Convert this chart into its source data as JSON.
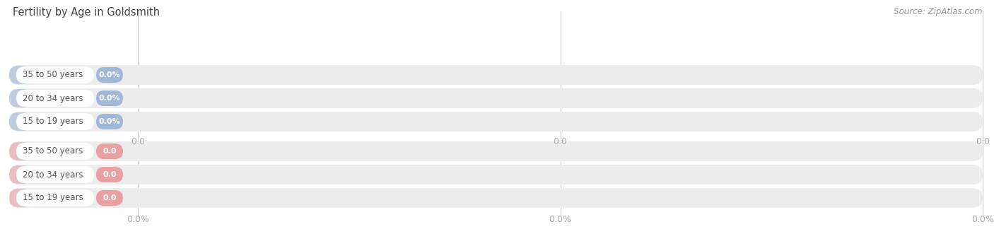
{
  "title": "Fertility by Age in Goldsmith",
  "source_text": "Source: ZipAtlas.com",
  "top_section": {
    "categories": [
      "15 to 19 years",
      "20 to 34 years",
      "35 to 50 years"
    ],
    "values": [
      0.0,
      0.0,
      0.0
    ],
    "bar_color": "#e8a0a0",
    "value_labels": [
      "0.0",
      "0.0",
      "0.0"
    ],
    "axis_labels": [
      "0.0",
      "0.0",
      "0.0"
    ]
  },
  "bottom_section": {
    "categories": [
      "15 to 19 years",
      "20 to 34 years",
      "35 to 50 years"
    ],
    "values": [
      0.0,
      0.0,
      0.0
    ],
    "bar_color": "#a0b8d8",
    "value_labels": [
      "0.0%",
      "0.0%",
      "0.0%"
    ],
    "axis_labels": [
      "0.0%",
      "0.0%",
      "0.0%"
    ]
  },
  "bg_color": "#ffffff",
  "bar_bg_color": "#ececec",
  "bar_bg_color_alt": "#e8e8e8",
  "title_color": "#444444",
  "label_text_color": "#555555",
  "axis_tick_color": "#aaaaaa",
  "source_color": "#999999",
  "grid_color": "#cccccc",
  "white_color": "#ffffff"
}
